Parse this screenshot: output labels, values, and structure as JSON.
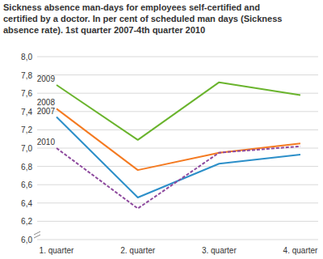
{
  "chart_data": {
    "type": "line",
    "title": "Sickness absence man-days for employees self-certified and certified by a doctor. In per cent of scheduled man days (Sickness absence rate). 1st quarter 2007-4th quarter 2010",
    "categories": [
      "1. quarter",
      "2. quarter",
      "3. quarter",
      "4. quarter"
    ],
    "series": [
      {
        "name": "2009",
        "color": "#6ab42d",
        "line_style": "solid",
        "values": [
          7.69,
          7.09,
          7.72,
          7.58
        ]
      },
      {
        "name": "2008",
        "color": "#f47a21",
        "line_style": "solid",
        "values": [
          7.43,
          6.76,
          6.95,
          7.05
        ]
      },
      {
        "name": "2007",
        "color": "#2c8fc9",
        "line_style": "solid",
        "values": [
          7.34,
          6.46,
          6.83,
          6.93
        ]
      },
      {
        "name": "2010",
        "color": "#8e4a9e",
        "line_style": "dashed",
        "values": [
          7.0,
          6.34,
          6.95,
          7.02
        ]
      }
    ],
    "ylim": [
      6.0,
      8.0
    ],
    "yticks": [
      {
        "value": 6.0,
        "label": "6,0"
      },
      {
        "value": 6.2,
        "label": "6,2"
      },
      {
        "value": 6.4,
        "label": "6,4"
      },
      {
        "value": 6.6,
        "label": "6,6"
      },
      {
        "value": 6.8,
        "label": "6,8"
      },
      {
        "value": 7.0,
        "label": "7,0"
      },
      {
        "value": 7.2,
        "label": "7,2"
      },
      {
        "value": 7.4,
        "label": "7,4"
      },
      {
        "value": 7.6,
        "label": "7,6"
      },
      {
        "value": 7.8,
        "label": "7,8"
      },
      {
        "value": 8.0,
        "label": "8,0"
      }
    ],
    "grid": true
  }
}
